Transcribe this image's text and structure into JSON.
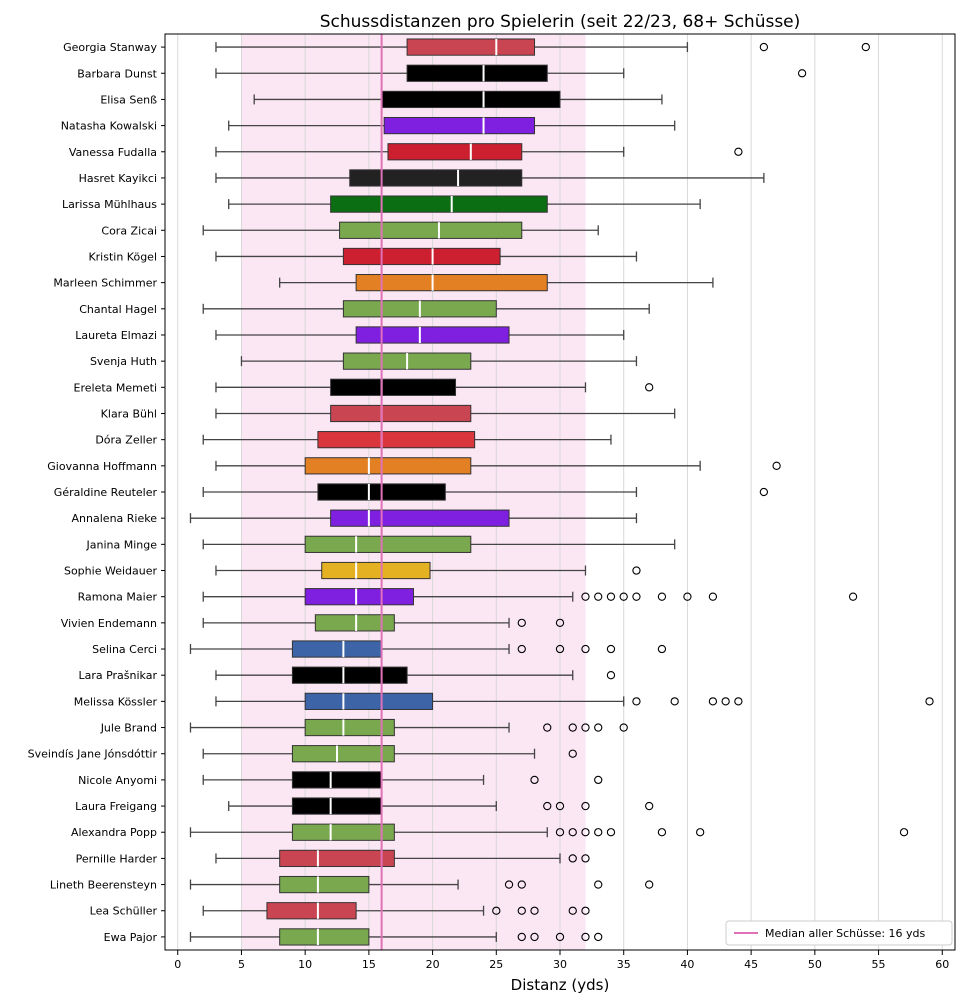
{
  "chart_data": {
    "type": "boxplot-horizontal",
    "title": "Schussdistanzen pro Spielerin (seit 22/23, 68+ Schüsse)",
    "xlabel": "Distanz (yds)",
    "ylabel": "",
    "xlim": [
      -1,
      61
    ],
    "xticks": [
      0,
      5,
      10,
      15,
      20,
      25,
      30,
      35,
      40,
      45,
      50,
      55,
      60
    ],
    "grid": "vertical",
    "highlight_band": {
      "from": 5,
      "to": 32,
      "color": "#fbe6f3"
    },
    "reference_line": {
      "value": 16,
      "color": "#e070b8",
      "label": "Median aller Schüsse: 16 yds"
    },
    "legend_position": "bottom-right",
    "players": [
      {
        "name": "Georgia Stanway",
        "lo": 3,
        "q1": 18,
        "med": 25,
        "q3": 28,
        "hi": 40,
        "outliers": [
          46,
          54
        ],
        "color": "#c94552"
      },
      {
        "name": "Barbara Dunst",
        "lo": 3,
        "q1": 18,
        "med": 24,
        "q3": 29,
        "hi": 35,
        "outliers": [
          49
        ],
        "color": "#000000"
      },
      {
        "name": "Elisa Senß",
        "lo": 6,
        "q1": 16,
        "med": 24,
        "q3": 30,
        "hi": 38,
        "outliers": [],
        "color": "#000000"
      },
      {
        "name": "Natasha Kowalski",
        "lo": 4,
        "q1": 16.2,
        "med": 24,
        "q3": 28,
        "hi": 39,
        "outliers": [],
        "color": "#7f1fe0"
      },
      {
        "name": "Vanessa Fudalla",
        "lo": 3,
        "q1": 16.5,
        "med": 23,
        "q3": 27,
        "hi": 35,
        "outliers": [
          44
        ],
        "color": "#cc1f30"
      },
      {
        "name": "Hasret Kayikci",
        "lo": 3,
        "q1": 13.5,
        "med": 22,
        "q3": 27,
        "hi": 46,
        "outliers": [],
        "color": "#222222"
      },
      {
        "name": "Larissa Mühlhaus",
        "lo": 4,
        "q1": 12,
        "med": 21.5,
        "q3": 29,
        "hi": 41,
        "outliers": [],
        "color": "#0b6e12"
      },
      {
        "name": "Cora Zicai",
        "lo": 2,
        "q1": 12.7,
        "med": 20.5,
        "q3": 27,
        "hi": 33,
        "outliers": [],
        "color": "#79a84f"
      },
      {
        "name": "Kristin Kögel",
        "lo": 3,
        "q1": 13,
        "med": 20,
        "q3": 25.3,
        "hi": 36,
        "outliers": [],
        "color": "#cc1f30"
      },
      {
        "name": "Marleen Schimmer",
        "lo": 8,
        "q1": 14,
        "med": 20,
        "q3": 29,
        "hi": 42,
        "outliers": [],
        "color": "#e38024"
      },
      {
        "name": "Chantal Hagel",
        "lo": 2,
        "q1": 13,
        "med": 19,
        "q3": 25,
        "hi": 37,
        "outliers": [],
        "color": "#79a84f"
      },
      {
        "name": "Laureta Elmazi",
        "lo": 3,
        "q1": 14,
        "med": 19,
        "q3": 26,
        "hi": 35,
        "outliers": [],
        "color": "#7f1fe0"
      },
      {
        "name": "Svenja Huth",
        "lo": 5,
        "q1": 13,
        "med": 18,
        "q3": 23,
        "hi": 36,
        "outliers": [],
        "color": "#79a84f"
      },
      {
        "name": "Ereleta Memeti",
        "lo": 3,
        "q1": 12,
        "med": 16,
        "q3": 21.8,
        "hi": 32,
        "outliers": [
          37
        ],
        "color": "#000000"
      },
      {
        "name": "Klara Bühl",
        "lo": 3,
        "q1": 12,
        "med": 16,
        "q3": 23,
        "hi": 39,
        "outliers": [],
        "color": "#c94552"
      },
      {
        "name": "Dóra Zeller",
        "lo": 2,
        "q1": 11,
        "med": 16,
        "q3": 23.3,
        "hi": 34,
        "outliers": [],
        "color": "#d9363e"
      },
      {
        "name": "Giovanna Hoffmann",
        "lo": 3,
        "q1": 10,
        "med": 15,
        "q3": 23,
        "hi": 41,
        "outliers": [
          47
        ],
        "color": "#e38024"
      },
      {
        "name": "Géraldine Reuteler",
        "lo": 2,
        "q1": 11,
        "med": 15,
        "q3": 21,
        "hi": 36,
        "outliers": [
          46
        ],
        "color": "#000000"
      },
      {
        "name": "Annalena Rieke",
        "lo": 1,
        "q1": 12,
        "med": 15,
        "q3": 26,
        "hi": 36,
        "outliers": [],
        "color": "#7f1fe0"
      },
      {
        "name": "Janina Minge",
        "lo": 2,
        "q1": 10,
        "med": 14,
        "q3": 23,
        "hi": 39,
        "outliers": [],
        "color": "#79a84f"
      },
      {
        "name": "Sophie Weidauer",
        "lo": 3,
        "q1": 11.3,
        "med": 14,
        "q3": 19.8,
        "hi": 32,
        "outliers": [
          36
        ],
        "color": "#e3b122"
      },
      {
        "name": "Ramona Maier",
        "lo": 2,
        "q1": 10,
        "med": 14,
        "q3": 18.5,
        "hi": 31,
        "outliers": [
          32,
          33,
          34,
          35,
          36,
          38,
          40,
          42,
          53
        ],
        "color": "#7f1fe0"
      },
      {
        "name": "Vivien Endemann",
        "lo": 2,
        "q1": 10.8,
        "med": 14,
        "q3": 17,
        "hi": 26,
        "outliers": [
          27,
          30
        ],
        "color": "#79a84f"
      },
      {
        "name": "Selina Cerci",
        "lo": 1,
        "q1": 9,
        "med": 13,
        "q3": 16,
        "hi": 26,
        "outliers": [
          27,
          30,
          32,
          34,
          38
        ],
        "color": "#3c64a6"
      },
      {
        "name": "Lara Prašnikar",
        "lo": 3,
        "q1": 9,
        "med": 13,
        "q3": 18,
        "hi": 31,
        "outliers": [
          34
        ],
        "color": "#000000"
      },
      {
        "name": "Melissa Kössler",
        "lo": 3,
        "q1": 10,
        "med": 13,
        "q3": 20,
        "hi": 35,
        "outliers": [
          36,
          39,
          42,
          43,
          44,
          59
        ],
        "color": "#3c64a6"
      },
      {
        "name": "Jule Brand",
        "lo": 1,
        "q1": 10,
        "med": 13,
        "q3": 17,
        "hi": 26,
        "outliers": [
          29,
          31,
          32,
          33,
          35
        ],
        "color": "#79a84f"
      },
      {
        "name": "Sveindís Jane Jónsdóttir",
        "lo": 2,
        "q1": 9,
        "med": 12.5,
        "q3": 17,
        "hi": 28,
        "outliers": [
          31
        ],
        "color": "#79a84f"
      },
      {
        "name": "Nicole Anyomi",
        "lo": 2,
        "q1": 9,
        "med": 12,
        "q3": 16,
        "hi": 24,
        "outliers": [
          28,
          33
        ],
        "color": "#000000"
      },
      {
        "name": "Laura Freigang",
        "lo": 4,
        "q1": 9,
        "med": 12,
        "q3": 16,
        "hi": 25,
        "outliers": [
          29,
          30,
          32,
          37
        ],
        "color": "#000000"
      },
      {
        "name": "Alexandra Popp",
        "lo": 1,
        "q1": 9,
        "med": 12,
        "q3": 17,
        "hi": 29,
        "outliers": [
          30,
          31,
          32,
          33,
          34,
          38,
          41,
          57
        ],
        "color": "#79a84f"
      },
      {
        "name": "Pernille Harder",
        "lo": 3,
        "q1": 8,
        "med": 11,
        "q3": 17,
        "hi": 30,
        "outliers": [
          31,
          32
        ],
        "color": "#c94552"
      },
      {
        "name": "Lineth Beerensteyn",
        "lo": 1,
        "q1": 8,
        "med": 11,
        "q3": 15,
        "hi": 22,
        "outliers": [
          26,
          27,
          33,
          37
        ],
        "color": "#79a84f"
      },
      {
        "name": "Lea Schüller",
        "lo": 2,
        "q1": 7,
        "med": 11,
        "q3": 14,
        "hi": 24,
        "outliers": [
          25,
          27,
          28,
          31,
          32
        ],
        "color": "#c94552"
      },
      {
        "name": "Ewa Pajor",
        "lo": 1,
        "q1": 8,
        "med": 11,
        "q3": 15,
        "hi": 25,
        "outliers": [
          27,
          28,
          30,
          32,
          33
        ],
        "color": "#79a84f"
      }
    ]
  }
}
